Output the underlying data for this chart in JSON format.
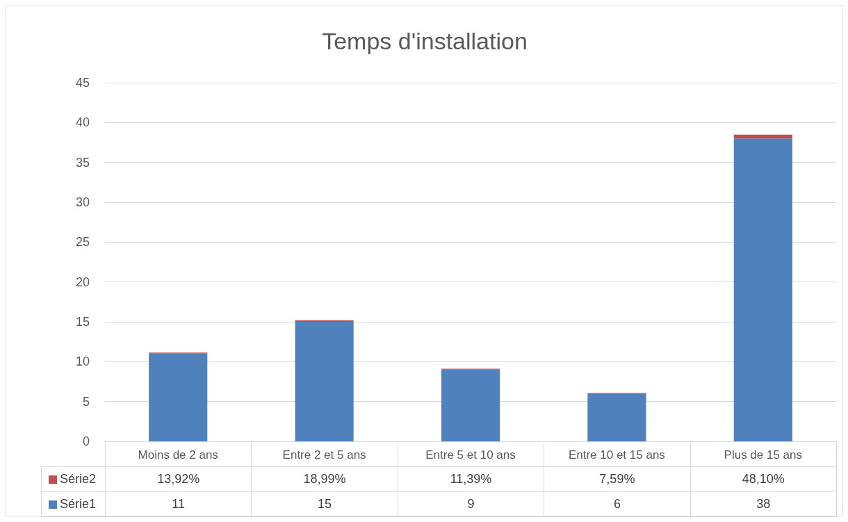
{
  "chart_data": {
    "type": "bar",
    "title": "Temps d'installation",
    "stacked": true,
    "categories": [
      "Moins de 2 ans",
      "Entre 2 et 5 ans",
      "Entre 5 et 10 ans",
      "Entre 10 et 15 ans",
      "Plus de 15 ans"
    ],
    "series": [
      {
        "name": "Série1",
        "color": "#4f81bd",
        "values": [
          11,
          15,
          9,
          6,
          38
        ],
        "value_labels": [
          "11",
          "15",
          "9",
          "6",
          "38"
        ]
      },
      {
        "name": "Série2",
        "color": "#c0504d",
        "values": [
          0.1392,
          0.1899,
          0.1139,
          0.0759,
          0.481
        ],
        "value_labels": [
          "13,92%",
          "18,99%",
          "11,39%",
          "7,59%",
          "48,10%"
        ]
      }
    ],
    "ylim": [
      0,
      45
    ],
    "yticks": [
      0,
      5,
      10,
      15,
      20,
      25,
      30,
      35,
      40,
      45
    ],
    "grid": "y",
    "legend": "bottom left"
  }
}
